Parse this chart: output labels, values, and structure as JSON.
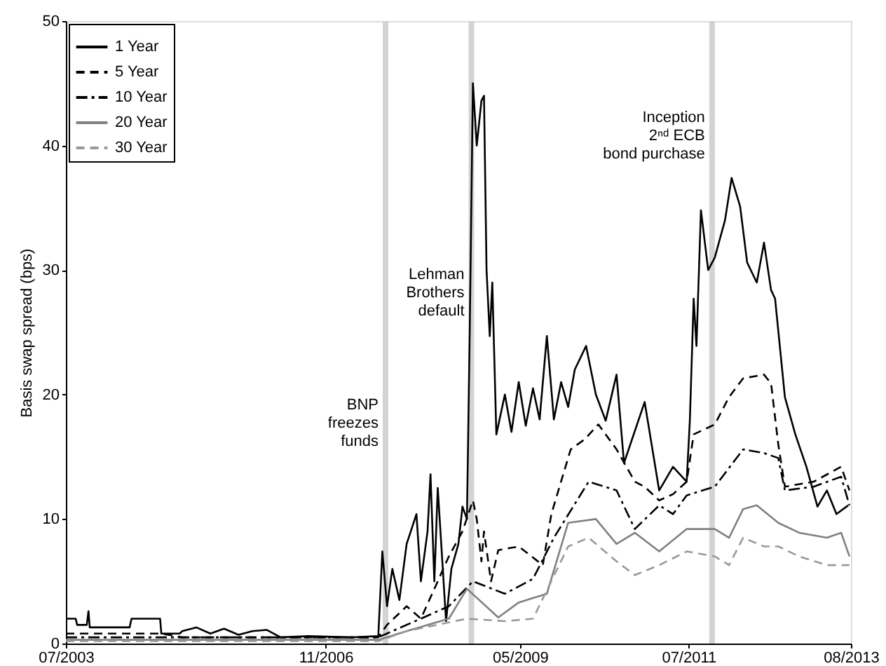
{
  "chart_data": {
    "type": "line",
    "ylabel": "Basis swap spread (bps)",
    "xlim": [
      "2003-07-01",
      "2013-08-01"
    ],
    "xticks": [
      {
        "value": "2003-07-01",
        "label": "07/2003"
      },
      {
        "value": "2006-11-01",
        "label": "11/2006"
      },
      {
        "value": "2009-05-01",
        "label": "05/2009"
      },
      {
        "value": "2011-07-01",
        "label": "07/2011"
      },
      {
        "value": "2013-08-01",
        "label": "08/2013"
      }
    ],
    "ylim": [
      0,
      50
    ],
    "yticks": [
      0,
      10,
      20,
      30,
      40,
      50
    ],
    "grid": false,
    "legend": "top left",
    "ref_lines": [
      {
        "axis": "x",
        "value": "2007-08-09",
        "label": "BNP\nfreezes\nfunds",
        "color": "#d3d3d3"
      },
      {
        "axis": "x",
        "value": "2008-09-15",
        "label": "Lehman\nBrothers\ndefault",
        "color": "#d3d3d3"
      },
      {
        "axis": "x",
        "value": "2011-10-19",
        "label": "Inception\n2ⁿᵈ ECB\nbond purchase",
        "color": "#d3d3d3"
      }
    ],
    "series": [
      {
        "name": "1 Year",
        "color": "#000000",
        "line_style": "solid",
        "x": [
          "2003-07-01",
          "2003-08-16",
          "2003-08-23",
          "2003-10-07",
          "2003-10-15",
          "2003-10-21",
          "2004-04-25",
          "2004-05-04",
          "2004-09-15",
          "2004-09-21",
          "2004-12-16",
          "2004-12-28",
          "2005-03-04",
          "2005-05-09",
          "2005-07-12",
          "2005-09-18",
          "2005-11-22",
          "2006-01-28",
          "2006-04-04",
          "2006-08-13",
          "2007-02-27",
          "2007-07-06",
          "2007-07-25",
          "2007-08-16",
          "2007-09-10",
          "2007-10-13",
          "2007-11-16",
          "2008-01-01",
          "2008-01-22",
          "2008-02-22",
          "2008-03-07",
          "2008-03-25",
          "2008-04-10",
          "2008-05-19",
          "2008-06-13",
          "2008-07-16",
          "2008-08-04",
          "2008-08-25",
          "2008-09-07",
          "2008-09-22",
          "2008-10-10",
          "2008-11-01",
          "2008-11-13",
          "2008-11-25",
          "2008-12-10",
          "2008-12-22",
          "2009-01-10",
          "2009-02-19",
          "2009-03-22",
          "2009-04-25",
          "2009-05-28",
          "2009-07-01",
          "2009-08-01",
          "2009-09-04",
          "2009-10-07",
          "2009-11-10",
          "2009-12-13",
          "2010-01-13",
          "2010-03-07",
          "2010-04-22",
          "2010-06-07",
          "2010-07-28",
          "2010-09-01",
          "2010-12-07",
          "2011-02-13",
          "2011-04-19",
          "2011-06-22",
          "2011-07-07",
          "2011-07-25",
          "2011-08-07",
          "2011-08-28",
          "2011-10-01",
          "2011-11-01",
          "2011-12-19",
          "2012-01-19",
          "2012-02-28",
          "2012-04-01",
          "2012-05-16",
          "2012-06-19",
          "2012-07-22",
          "2012-08-10",
          "2012-09-25",
          "2012-11-13",
          "2013-01-04",
          "2013-02-25",
          "2013-04-10",
          "2013-05-25",
          "2013-07-19"
        ],
        "values": [
          2.0,
          2.0,
          1.5,
          1.5,
          2.6,
          1.3,
          1.3,
          2.0,
          2.0,
          0.8,
          0.8,
          1.0,
          1.3,
          0.8,
          1.2,
          0.7,
          1.0,
          1.1,
          0.5,
          0.6,
          0.5,
          0.6,
          7.4,
          3,
          6,
          3.5,
          8,
          10.4,
          5,
          9,
          13.6,
          5,
          12.5,
          1.8,
          6,
          8,
          11,
          10,
          25,
          45,
          40,
          43.6,
          44,
          30,
          24.7,
          29,
          16.8,
          20,
          17,
          21,
          17.5,
          20.5,
          18,
          24.7,
          18,
          21,
          19,
          22,
          23.9,
          20,
          17.9,
          21.6,
          14.5,
          19.4,
          12.3,
          14.2,
          13,
          17.9,
          27.7,
          23.9,
          34.8,
          30,
          31,
          34,
          37.4,
          35.1,
          30.6,
          29,
          32.2,
          28.4,
          27.7,
          19.8,
          16.8,
          14.2,
          11,
          12.3,
          10.4,
          11.1
        ]
      },
      {
        "name": "5 Year",
        "color": "#000000",
        "line_style": "dashed",
        "x": [
          "2003-07-01",
          "2004-09-21",
          "2004-12-28",
          "2007-07-06",
          "2007-08-16",
          "2007-11-16",
          "2008-01-22",
          "2008-04-10",
          "2008-06-01",
          "2008-08-04",
          "2008-09-22",
          "2008-10-10",
          "2008-11-01",
          "2008-11-13",
          "2008-12-16",
          "2009-01-19",
          "2009-04-25",
          "2009-08-16",
          "2009-09-25",
          "2009-12-25",
          "2010-02-28",
          "2010-05-04",
          "2010-07-28",
          "2010-10-22",
          "2010-12-07",
          "2011-02-13",
          "2011-04-19",
          "2011-06-22",
          "2011-07-25",
          "2011-11-01",
          "2012-01-07",
          "2012-03-13",
          "2012-06-19",
          "2012-07-22",
          "2012-08-25",
          "2012-09-25",
          "2013-02-07",
          "2013-06-16",
          "2013-07-25"
        ],
        "values": [
          0.8,
          0.8,
          0.5,
          0.5,
          1.5,
          3,
          2,
          5,
          7,
          9,
          11.5,
          10,
          6.6,
          9,
          5,
          7.5,
          7.8,
          6.3,
          10.4,
          15.6,
          16.4,
          17.6,
          15.6,
          13,
          12.6,
          11.5,
          12,
          13,
          16.8,
          17.6,
          19.8,
          21.3,
          21.6,
          20.9,
          16,
          12.6,
          13,
          14.2,
          12.3
        ]
      },
      {
        "name": "10 Year",
        "color": "#000000",
        "line_style": "dashdot",
        "x": [
          "2003-07-01",
          "2007-07-06",
          "2007-09-10",
          "2008-01-22",
          "2008-06-01",
          "2008-09-22",
          "2009-02-19",
          "2009-07-01",
          "2009-10-07",
          "2010-03-19",
          "2010-07-28",
          "2010-10-22",
          "2011-02-13",
          "2011-04-19",
          "2011-06-22",
          "2011-11-01",
          "2012-03-13",
          "2012-06-19",
          "2012-08-25",
          "2012-09-25",
          "2013-02-07",
          "2013-06-16",
          "2013-07-25"
        ],
        "values": [
          0.5,
          0.5,
          1,
          2,
          3,
          5,
          4,
          5.2,
          8.5,
          13,
          12.3,
          9.2,
          11.1,
          10.4,
          11.9,
          12.6,
          15.6,
          15.3,
          14.9,
          12.3,
          12.6,
          13.4,
          11.1
        ]
      },
      {
        "name": "20 Year",
        "color": "#808080",
        "line_style": "solid",
        "x": [
          "2003-07-01",
          "2007-07-06",
          "2007-11-16",
          "2008-06-01",
          "2008-08-25",
          "2009-01-19",
          "2009-04-25",
          "2009-09-04",
          "2009-12-13",
          "2010-04-22",
          "2010-07-28",
          "2010-10-22",
          "2011-02-13",
          "2011-06-22",
          "2011-11-01",
          "2012-01-07",
          "2012-03-13",
          "2012-05-16",
          "2012-08-25",
          "2012-12-01",
          "2013-04-10",
          "2013-06-16",
          "2013-07-25"
        ],
        "values": [
          0.3,
          0.3,
          1,
          2,
          4.4,
          2.1,
          3.3,
          4,
          9.7,
          10,
          8,
          8.9,
          7.4,
          9.2,
          9.2,
          8.5,
          10.8,
          11.1,
          9.7,
          8.9,
          8.5,
          8.9,
          7
        ]
      },
      {
        "name": "30 Year",
        "color": "#999999",
        "line_style": "dashed",
        "x": [
          "2003-07-01",
          "2007-07-06",
          "2007-11-16",
          "2008-08-25",
          "2009-02-19",
          "2009-07-01",
          "2009-12-13",
          "2010-03-19",
          "2010-07-28",
          "2010-10-22",
          "2011-02-13",
          "2011-06-22",
          "2011-11-01",
          "2012-01-07",
          "2012-03-13",
          "2012-06-19",
          "2012-08-25",
          "2012-12-01",
          "2013-04-10",
          "2013-07-25"
        ],
        "values": [
          0.2,
          0.2,
          1,
          2,
          1.8,
          2,
          7.8,
          8.5,
          6.6,
          5.5,
          6.3,
          7.4,
          7,
          6.3,
          8.5,
          7.8,
          7.8,
          7,
          6.3,
          6.3
        ]
      }
    ]
  }
}
